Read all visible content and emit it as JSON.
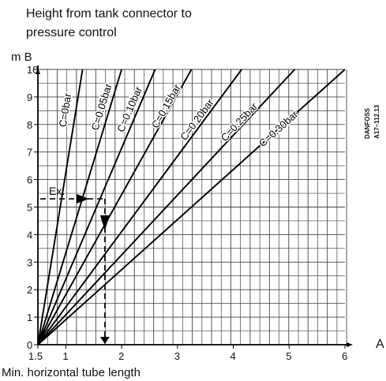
{
  "chart_data": {
    "type": "line",
    "title": "Height from tank connector to pressure control",
    "xlabel": "Min. horizontal tube length",
    "ylabel": "m B",
    "x_axis_end_label": "A",
    "xlim": [
      1.5,
      6.3
    ],
    "ylim": [
      0,
      10
    ],
    "x_ticks": [
      {
        "value": 1.5,
        "label": "1.5"
      },
      {
        "value": 2,
        "label": "1"
      },
      {
        "value": 3,
        "label": "2"
      },
      {
        "value": 4,
        "label": "3"
      },
      {
        "value": 5,
        "label": "4"
      },
      {
        "value": 6,
        "label": "5"
      },
      {
        "value": 7,
        "label": "6"
      }
    ],
    "y_ticks": [
      0,
      1,
      2,
      3,
      4,
      5,
      6,
      7,
      8,
      9,
      10
    ],
    "grid": true,
    "series": [
      {
        "name": "C=0bar",
        "x": [
          1.5,
          2.3
        ],
        "y": [
          0,
          10
        ],
        "label_pos": [
          2.05,
          8.5
        ]
      },
      {
        "name": "C=0.05bar",
        "x": [
          1.5,
          3.0
        ],
        "y": [
          0,
          10
        ],
        "label_pos": [
          2.7,
          8.6
        ]
      },
      {
        "name": "C=0.10bar",
        "x": [
          1.5,
          3.6
        ],
        "y": [
          0,
          10
        ],
        "label_pos": [
          3.2,
          8.5
        ]
      },
      {
        "name": "C=0.15bar",
        "x": [
          1.5,
          4.25
        ],
        "y": [
          0,
          10
        ],
        "label_pos": [
          3.85,
          8.6
        ]
      },
      {
        "name": "C=0.20bar",
        "x": [
          1.5,
          5.15
        ],
        "y": [
          0,
          10
        ],
        "label_pos": [
          4.4,
          8.1
        ]
      },
      {
        "name": "C=0.25bar",
        "x": [
          1.5,
          6.1
        ],
        "y": [
          0,
          10
        ],
        "label_pos": [
          5.15,
          8.0
        ]
      },
      {
        "name": "C=0.30bar",
        "x": [
          1.5,
          7.0
        ],
        "y": [
          0,
          10
        ],
        "label_pos": [
          5.85,
          7.75
        ]
      }
    ],
    "example": {
      "label": "Ex.",
      "x": 2.7,
      "y": 5.3
    },
    "side_code": "DANFOSS A17–112.13"
  }
}
